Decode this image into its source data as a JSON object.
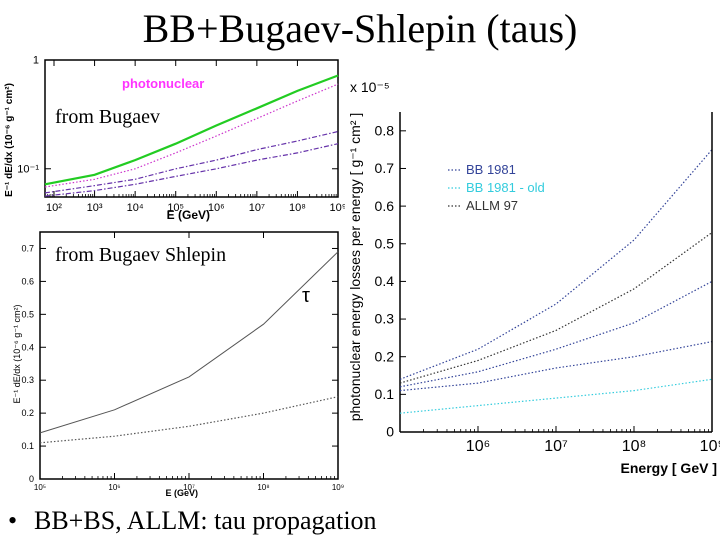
{
  "slide": {
    "title": "BB+Bugaev-Shlepin (taus)",
    "bullet": "BB+BS, ALLM: tau propagation",
    "overlay_top": "from Bugaev",
    "overlay_mid": "from Bugaev Shlepin"
  },
  "chart_data": [
    {
      "type": "line",
      "title": "photonuclear",
      "xlabel": "E (GeV)",
      "ylabel": "E⁻¹ dE/dx (10⁻⁶ g⁻¹ cm²)",
      "x_scale": "log",
      "y_scale": "log",
      "xlim": [
        60,
        1000000000.0
      ],
      "ylim": [
        0.055,
        1
      ],
      "x_ticks": [
        "10²",
        "10³",
        "10⁴",
        "10⁵",
        "10⁶",
        "10⁷",
        "10⁸",
        "10⁹"
      ],
      "y_ticks": [
        "10⁻¹",
        "1"
      ],
      "colors": {
        "title": "#ff33ff",
        "green": "#22cc22",
        "magenta": "#cc33cc",
        "purple": "#6633aa",
        "frame": "#000000"
      },
      "series": [
        {
          "style": "solid",
          "color": "#22cc22",
          "x": [
            60,
            1000.0,
            10000.0,
            100000.0,
            1000000.0,
            10000000.0,
            100000000.0,
            1000000000.0
          ],
          "y": [
            0.072,
            0.088,
            0.12,
            0.17,
            0.25,
            0.36,
            0.52,
            0.72
          ]
        },
        {
          "style": "dotted",
          "color": "#cc33cc",
          "x": [
            60,
            1000.0,
            10000.0,
            100000.0,
            1000000.0,
            10000000.0,
            100000000.0,
            1000000000.0
          ],
          "y": [
            0.068,
            0.08,
            0.1,
            0.14,
            0.2,
            0.29,
            0.42,
            0.6
          ]
        },
        {
          "style": "dashdot",
          "color": "#6633aa",
          "x": [
            60,
            1000.0,
            10000.0,
            100000.0,
            1000000.0,
            10000000.0,
            100000000.0,
            1000000000.0
          ],
          "y": [
            0.06,
            0.07,
            0.08,
            0.1,
            0.12,
            0.15,
            0.18,
            0.22
          ]
        },
        {
          "style": "dashdot",
          "color": "#6633aa",
          "x": [
            60,
            1000.0,
            10000.0,
            100000.0,
            1000000.0,
            10000000.0,
            100000000.0,
            1000000000.0
          ],
          "y": [
            0.056,
            0.063,
            0.072,
            0.085,
            0.1,
            0.12,
            0.14,
            0.17
          ]
        }
      ]
    },
    {
      "type": "line",
      "title": "",
      "xlabel": "E (GeV)",
      "ylabel": "E⁻¹ dE/dx (10⁻⁶ g⁻¹ cm²)",
      "annotation": "τ",
      "x_scale": "log",
      "xlim": [
        100000.0,
        1000000000.0
      ],
      "ylim": [
        0,
        0.75
      ],
      "x_ticks": [
        "10⁵",
        "10⁶",
        "10⁷",
        "10⁸",
        "10⁹"
      ],
      "y_ticks": [
        "0",
        "0.1",
        "0.2",
        "0.3",
        "0.4",
        "0.5",
        "0.6",
        "0.7"
      ],
      "colors": {
        "line": "#555555",
        "frame": "#000000"
      },
      "series": [
        {
          "style": "solid",
          "color": "#555555",
          "x": [
            100000.0,
            1000000.0,
            10000000.0,
            100000000.0,
            1000000000.0
          ],
          "y": [
            0.14,
            0.21,
            0.31,
            0.47,
            0.69
          ]
        },
        {
          "style": "dotted",
          "color": "#555555",
          "x": [
            100000.0,
            1000000.0,
            10000000.0,
            100000000.0,
            1000000000.0
          ],
          "y": [
            0.11,
            0.13,
            0.16,
            0.2,
            0.25
          ]
        }
      ]
    },
    {
      "type": "line",
      "title": "",
      "xlabel": "Energy [ GeV ]",
      "ylabel": "photonuclear energy losses per energy [ g⁻¹ cm² ]",
      "y_multiplier": "x 10⁻⁵",
      "x_scale": "log",
      "xlim": [
        100000.0,
        1000000000.0
      ],
      "ylim": [
        0,
        0.85
      ],
      "x_ticks": [
        "10⁶",
        "10⁷",
        "10⁸",
        "10⁹"
      ],
      "y_ticks": [
        "0",
        "0.1",
        "0.2",
        "0.3",
        "0.4",
        "0.5",
        "0.6",
        "0.7",
        "0.8"
      ],
      "legend": {
        "placement": "top-left",
        "entries": [
          {
            "label": "BB 1981",
            "color": "#334499"
          },
          {
            "label": "BB 1981 - old",
            "color": "#33ccdd"
          },
          {
            "label": "ALLM 97",
            "color": "#333333"
          }
        ]
      },
      "colors": {
        "bb": "#334499",
        "old": "#33ccdd",
        "allm": "#333333",
        "frame": "#000000"
      },
      "series": [
        {
          "color": "#334499",
          "style": "dotted",
          "x": [
            100000.0,
            1000000.0,
            10000000.0,
            100000000.0,
            1000000000.0
          ],
          "y": [
            0.14,
            0.22,
            0.34,
            0.51,
            0.75
          ]
        },
        {
          "color": "#333333",
          "style": "dotted",
          "x": [
            100000.0,
            1000000.0,
            10000000.0,
            100000000.0,
            1000000000.0
          ],
          "y": [
            0.13,
            0.19,
            0.27,
            0.38,
            0.53
          ]
        },
        {
          "color": "#334499",
          "style": "dotted",
          "x": [
            100000.0,
            1000000.0,
            10000000.0,
            100000000.0,
            1000000000.0
          ],
          "y": [
            0.12,
            0.16,
            0.22,
            0.29,
            0.4
          ]
        },
        {
          "color": "#334499",
          "style": "dotted",
          "x": [
            100000.0,
            1000000.0,
            10000000.0,
            100000000.0,
            1000000000.0
          ],
          "y": [
            0.11,
            0.13,
            0.17,
            0.2,
            0.24
          ]
        },
        {
          "color": "#33ccdd",
          "style": "dotted",
          "x": [
            100000.0,
            1000000.0,
            10000000.0,
            100000000.0,
            1000000000.0
          ],
          "y": [
            0.05,
            0.07,
            0.09,
            0.11,
            0.14
          ]
        }
      ]
    }
  ]
}
